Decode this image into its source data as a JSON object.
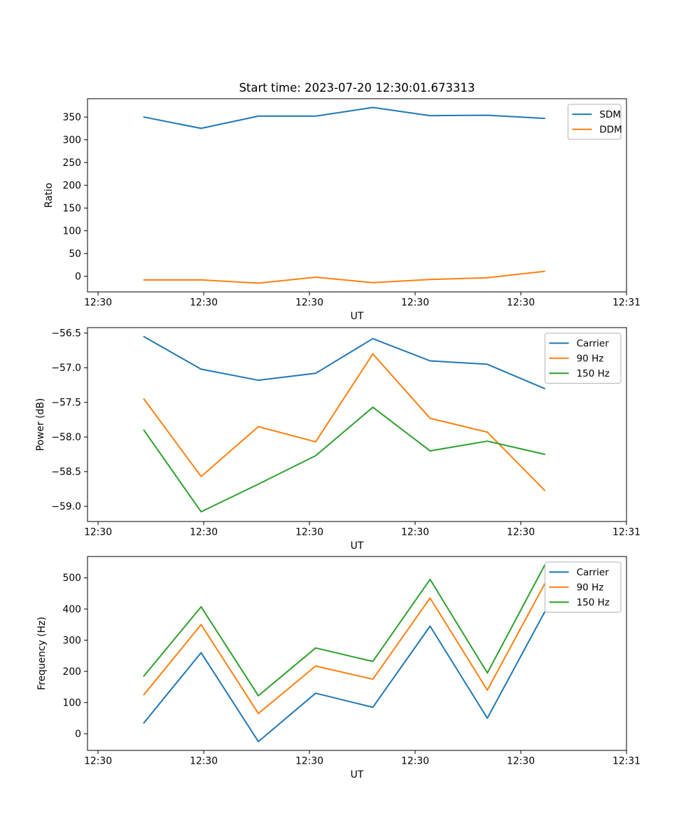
{
  "title": "Start time: 2023-07-20 12:30:01.673313",
  "chart_data": [
    {
      "name": "ratio",
      "type": "line",
      "xlabel": "UT",
      "ylabel": "Ratio",
      "x": [
        5.2,
        11.7,
        18.2,
        24.7,
        31.2,
        37.7,
        44.2,
        50.7
      ],
      "xlim": [
        -1.2,
        60
      ],
      "ylim": [
        -34.3,
        390.3
      ],
      "xtick_values": [
        0,
        12,
        24,
        36,
        48,
        60
      ],
      "xtick_labels": [
        "12:30",
        "12:30",
        "12:30",
        "12:30",
        "12:30",
        "12:31"
      ],
      "ytick_values": [
        0,
        50,
        100,
        150,
        200,
        250,
        300,
        350
      ],
      "ytick_labels": [
        "0",
        "50",
        "100",
        "150",
        "200",
        "250",
        "300",
        "350"
      ],
      "legend_position": "upper right",
      "grid": false,
      "series": [
        {
          "name": "SDM",
          "color": "#1f77b4",
          "values": [
            350,
            325,
            352,
            352,
            371,
            353,
            354,
            347
          ]
        },
        {
          "name": "DDM",
          "color": "#ff7f0e",
          "values": [
            -8,
            -8,
            -15,
            -2,
            -14,
            -7,
            -3,
            11
          ]
        }
      ]
    },
    {
      "name": "power",
      "type": "line",
      "xlabel": "UT",
      "ylabel": "Power (dB)",
      "x": [
        5.2,
        11.7,
        18.2,
        24.7,
        31.2,
        37.7,
        44.2,
        50.7
      ],
      "xlim": [
        -1.2,
        60
      ],
      "ylim": [
        -59.22,
        -56.42
      ],
      "xtick_values": [
        0,
        12,
        24,
        36,
        48,
        60
      ],
      "xtick_labels": [
        "12:30",
        "12:30",
        "12:30",
        "12:30",
        "12:30",
        "12:31"
      ],
      "ytick_values": [
        -59.0,
        -58.5,
        -58.0,
        -57.5,
        -57.0,
        -56.5
      ],
      "ytick_labels": [
        "−59.0",
        "−58.5",
        "−58.0",
        "−57.5",
        "−57.0",
        "−56.5"
      ],
      "legend_position": "upper right",
      "grid": false,
      "series": [
        {
          "name": "Carrier",
          "color": "#1f77b4",
          "values": [
            -56.55,
            -57.02,
            -57.18,
            -57.08,
            -56.58,
            -56.9,
            -56.95,
            -57.3
          ]
        },
        {
          "name": "90 Hz",
          "color": "#ff7f0e",
          "values": [
            -57.45,
            -58.57,
            -57.85,
            -58.07,
            -56.8,
            -57.73,
            -57.93,
            -58.77
          ]
        },
        {
          "name": "150 Hz",
          "color": "#2ca02c",
          "values": [
            -57.9,
            -59.08,
            -58.68,
            -58.27,
            -57.57,
            -58.2,
            -58.06,
            -58.25
          ]
        }
      ]
    },
    {
      "name": "frequency",
      "type": "line",
      "xlabel": "UT",
      "ylabel": "Frequency (Hz)",
      "x": [
        5.2,
        11.7,
        18.2,
        24.7,
        31.2,
        37.7,
        44.2,
        50.7
      ],
      "xlim": [
        -1.2,
        60
      ],
      "ylim": [
        -53.3,
        568.3
      ],
      "xtick_values": [
        0,
        12,
        24,
        36,
        48,
        60
      ],
      "xtick_labels": [
        "12:30",
        "12:30",
        "12:30",
        "12:30",
        "12:30",
        "12:31"
      ],
      "ytick_values": [
        0,
        100,
        200,
        300,
        400,
        500
      ],
      "ytick_labels": [
        "0",
        "100",
        "200",
        "300",
        "400",
        "500"
      ],
      "legend_position": "upper right",
      "grid": false,
      "series": [
        {
          "name": "Carrier",
          "color": "#1f77b4",
          "values": [
            35,
            260,
            -25,
            130,
            85,
            345,
            50,
            390
          ]
        },
        {
          "name": "90 Hz",
          "color": "#ff7f0e",
          "values": [
            125,
            350,
            65,
            217,
            175,
            435,
            140,
            480
          ]
        },
        {
          "name": "150 Hz",
          "color": "#2ca02c",
          "values": [
            185,
            407,
            122,
            275,
            232,
            495,
            195,
            540
          ]
        }
      ]
    }
  ]
}
